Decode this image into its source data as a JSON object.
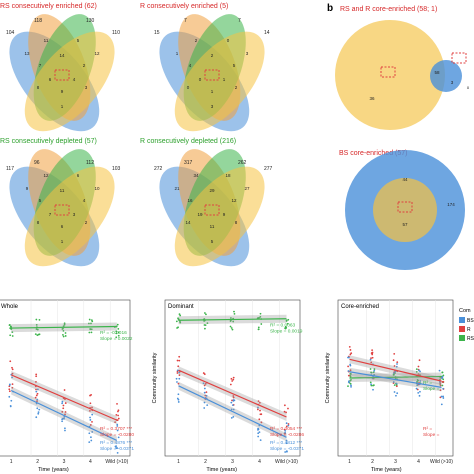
{
  "panel_b_label": "b",
  "venns": [
    {
      "title": "RS consecutively enriched (62)",
      "set_counts": [
        "104",
        "118",
        "130",
        "110"
      ],
      "regions": [
        "13",
        "11",
        "5",
        "12",
        "7",
        "14",
        "2",
        "6",
        "4",
        "8",
        "3",
        "9",
        "1"
      ]
    },
    {
      "title": "R consecutively enriched (5)",
      "set_counts": [
        "15",
        "7",
        "7",
        "14"
      ],
      "regions": [
        "1",
        "2",
        "0",
        "3",
        "4",
        "2",
        "5",
        "0",
        "1",
        "0",
        "2",
        "1",
        "3"
      ]
    },
    {
      "title": "RS consecutively depleted (57)",
      "set_counts": [
        "117",
        "96",
        "112",
        "103"
      ],
      "regions": [
        "9",
        "12",
        "6",
        "10",
        "5",
        "11",
        "4",
        "7",
        "3",
        "8",
        "2",
        "6",
        "1"
      ]
    },
    {
      "title": "R consecutively depleted (216)",
      "set_counts": [
        "272",
        "317",
        "262",
        "277"
      ],
      "regions": [
        "21",
        "34",
        "18",
        "27",
        "16",
        "29",
        "12",
        "19",
        "9",
        "14",
        "8",
        "11",
        "5"
      ]
    }
  ],
  "pair_titles": [
    "RS and R core-enriched (58; 1)",
    "BS core-enriched (57)"
  ],
  "pair1_counts": [
    "36",
    "58",
    "3"
  ],
  "pair2_counts": [
    "44",
    "174",
    "57"
  ],
  "small_label": "x",
  "plots": [
    {
      "title": "Whole",
      "ylabel": "",
      "xlabel": "Time (years)",
      "ticks": [
        "1",
        "2",
        "3",
        "4",
        "Wild (>10)"
      ],
      "green_r2": "R² = -0.0016",
      "green_slope": "Slope = 0.0022",
      "red_r2": "R² = 0.3707 ***",
      "red_slope": "Slope = -0.0280",
      "blue_r2": "R² = 0.4876 ***",
      "blue_slope": "Slope = -0.0371"
    },
    {
      "title": "Dominant",
      "ylabel": "Community similarity",
      "xlabel": "Time (years)",
      "ticks": [
        "1",
        "2",
        "3",
        "4",
        "Wild (>10)"
      ],
      "green_r2": "R² = 0.0063",
      "green_slope": "Slope = 0.0019",
      "red_r2": "R² = 0.3054 ***",
      "red_slope": "Slope = -0.0286",
      "blue_r2": "R² = 0.4812 ***",
      "blue_slope": "Slope = -0.0371"
    },
    {
      "title": "Core-enriched",
      "ylabel": "Community similarity",
      "xlabel": "Time (years)",
      "ticks": [
        "1",
        "2",
        "3",
        "4",
        "Wild (>10)"
      ],
      "green_r2": "R² = ",
      "green_slope": "Slope = ",
      "red_r2": "R² = ",
      "red_slope": "Slope = "
    }
  ],
  "legend": {
    "title": "Com",
    "items": [
      "BS",
      "R",
      "RS"
    ]
  },
  "colors": {
    "blue": "#4a90d9",
    "orange": "#f0a040",
    "green": "#3cb44b",
    "yellow": "#f5c242",
    "red": "#e04040",
    "title_red": "#d62728",
    "title_green": "#2ca02c"
  }
}
